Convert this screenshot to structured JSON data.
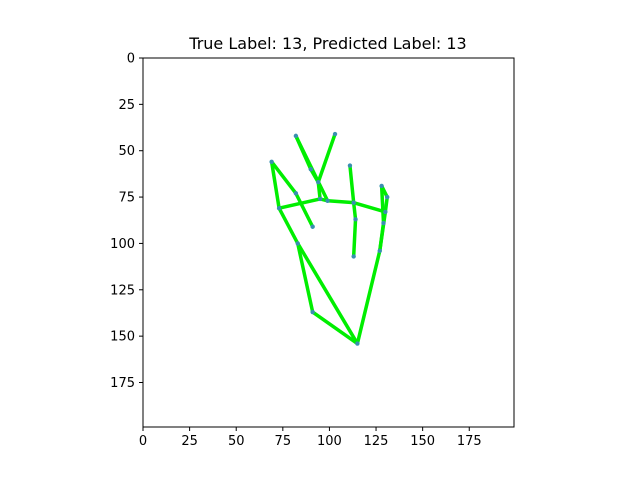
{
  "chart_data": {
    "type": "image",
    "title": "True Label: 13, Predicted Label: 13",
    "xlabel": "",
    "ylabel": "",
    "xlim": [
      0,
      199
    ],
    "ylim": [
      199,
      0
    ],
    "xticks": [
      0,
      25,
      50,
      75,
      100,
      125,
      150,
      175
    ],
    "yticks": [
      0,
      25,
      50,
      75,
      100,
      125,
      150,
      175
    ],
    "grid": false,
    "colors": {
      "bone": "#00ee00",
      "joint": "#3a8fb0",
      "frame": "#000000"
    },
    "keypoints": [
      {
        "x": 115,
        "y": 154
      },
      {
        "x": 91,
        "y": 137
      },
      {
        "x": 83,
        "y": 100
      },
      {
        "x": 73,
        "y": 81
      },
      {
        "x": 69,
        "y": 56
      },
      {
        "x": 95,
        "y": 76
      },
      {
        "x": 82,
        "y": 73
      },
      {
        "x": 91,
        "y": 91
      },
      {
        "x": 99,
        "y": 77
      },
      {
        "x": 82,
        "y": 42
      },
      {
        "x": 90,
        "y": 60
      },
      {
        "x": 94,
        "y": 67
      },
      {
        "x": 113,
        "y": 78
      },
      {
        "x": 111,
        "y": 58
      },
      {
        "x": 114,
        "y": 87
      },
      {
        "x": 113,
        "y": 107
      },
      {
        "x": 103,
        "y": 41
      },
      {
        "x": 130,
        "y": 83
      },
      {
        "x": 128,
        "y": 69
      },
      {
        "x": 131,
        "y": 75
      },
      {
        "x": 127,
        "y": 104
      },
      {
        "x": 129,
        "y": 89
      }
    ],
    "segments": [
      [
        0,
        1
      ],
      [
        1,
        2
      ],
      [
        2,
        3
      ],
      [
        3,
        4
      ],
      [
        4,
        6
      ],
      [
        6,
        7
      ],
      [
        3,
        5
      ],
      [
        5,
        8
      ],
      [
        8,
        12
      ],
      [
        12,
        17
      ],
      [
        9,
        10
      ],
      [
        10,
        11
      ],
      [
        11,
        5
      ],
      [
        9,
        8
      ],
      [
        16,
        11
      ],
      [
        13,
        12
      ],
      [
        12,
        14
      ],
      [
        14,
        15
      ],
      [
        18,
        19
      ],
      [
        19,
        17
      ],
      [
        18,
        21
      ],
      [
        21,
        20
      ],
      [
        17,
        20
      ],
      [
        20,
        0
      ],
      [
        2,
        0
      ]
    ]
  }
}
